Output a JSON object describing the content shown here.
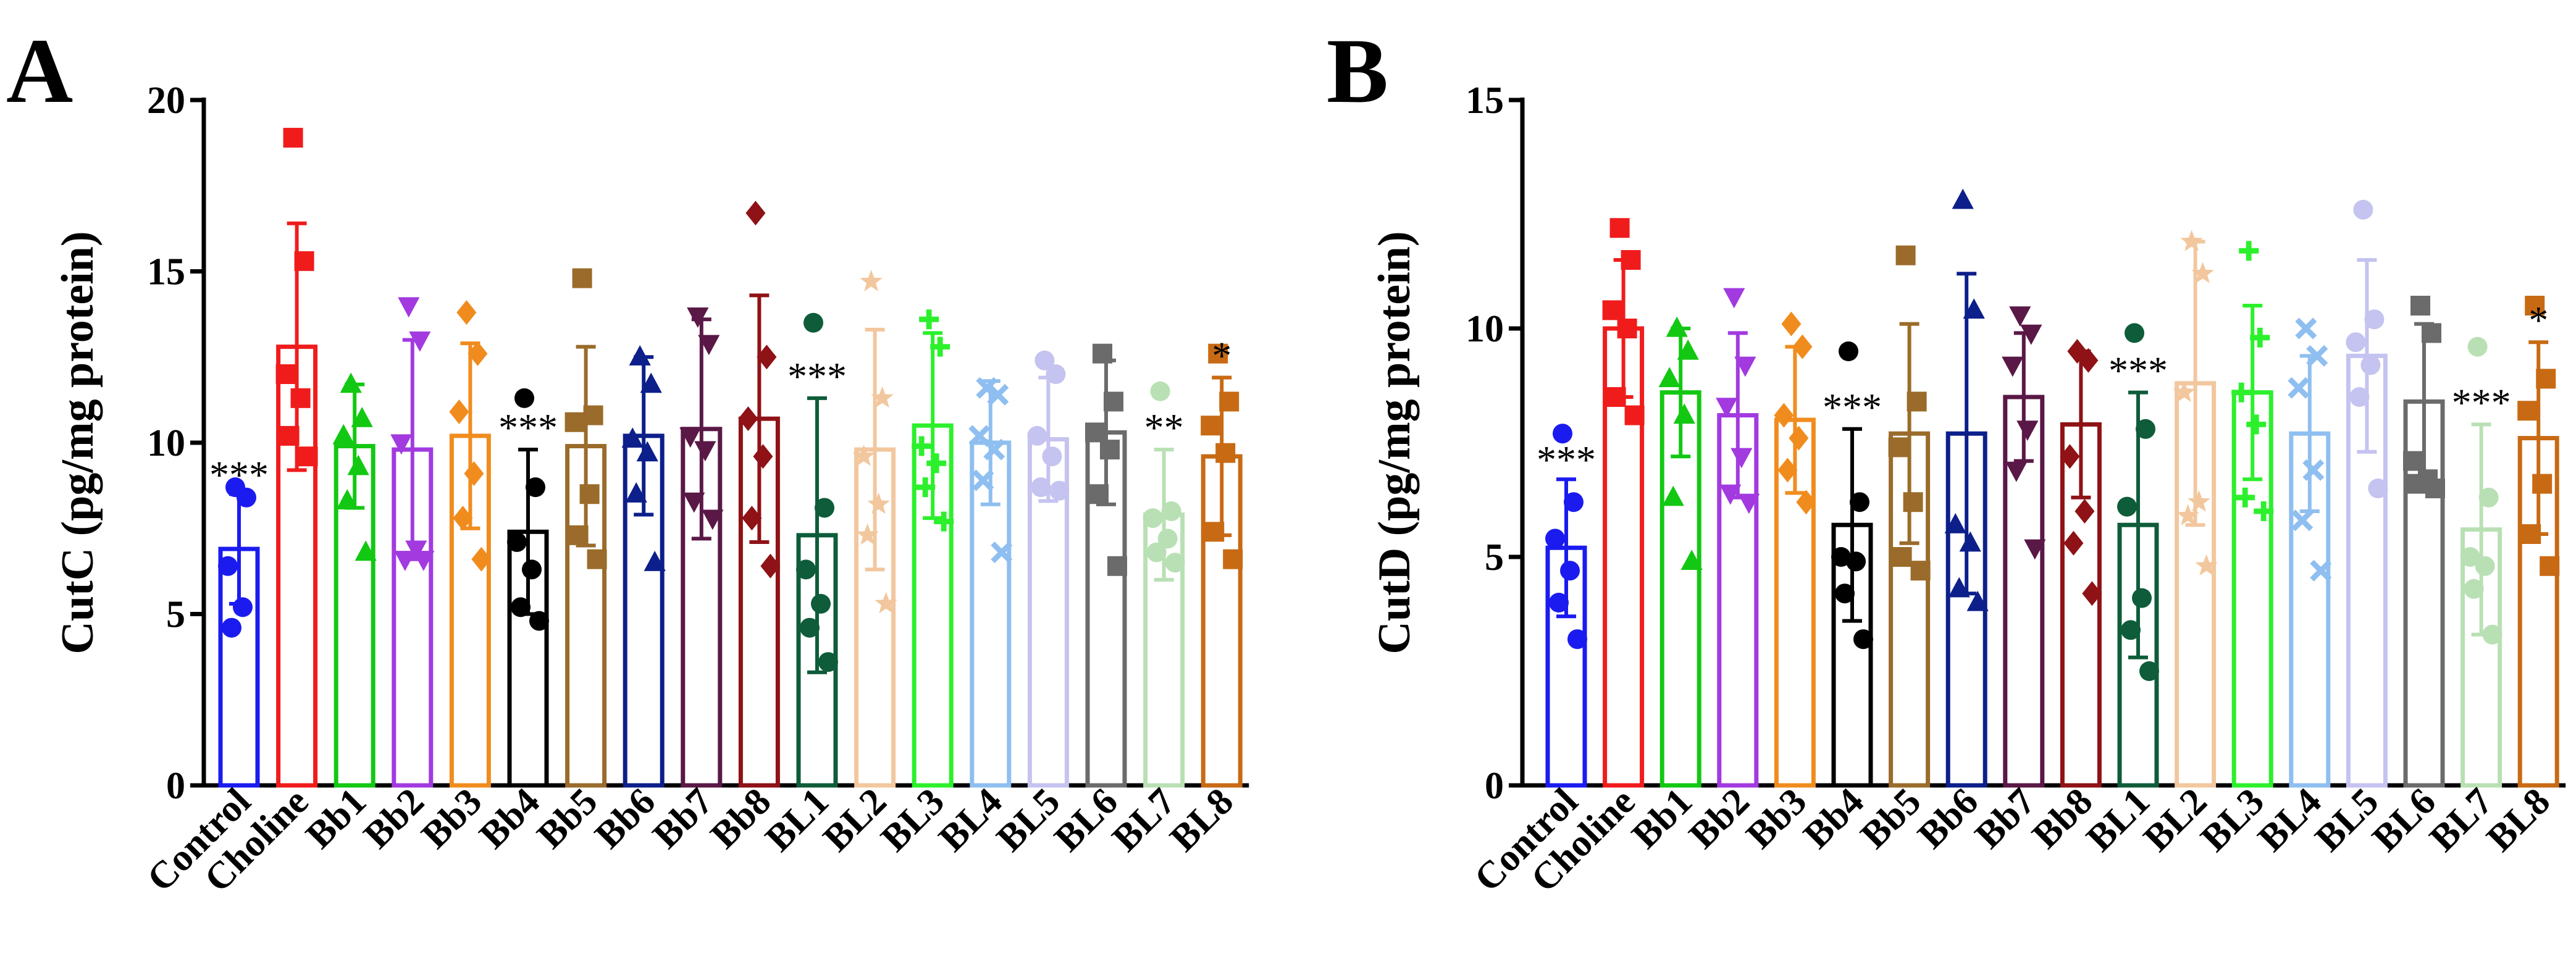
{
  "panels": [
    {
      "letter": "A"
    },
    {
      "letter": "B"
    }
  ],
  "chart_data": [
    {
      "type": "bar",
      "panel": "A",
      "title": "",
      "ylabel": "CutC (pg/mg protein)",
      "xlabel": "",
      "ylim": [
        0,
        20
      ],
      "yticks": [
        "0",
        "5",
        "10",
        "15",
        "20"
      ],
      "categories": [
        "Control",
        "Choline",
        "Bb1",
        "Bb2",
        "Bb3",
        "Bb4",
        "Bb5",
        "Bb6",
        "Bb7",
        "Bb8",
        "BL1",
        "BL2",
        "BL3",
        "BL4",
        "BL5",
        "BL6",
        "BL7",
        "BL8"
      ],
      "markers": [
        "circle",
        "square",
        "triangle",
        "triangle-down",
        "diamond",
        "circle",
        "square",
        "triangle",
        "triangle-down",
        "diamond",
        "circle",
        "star",
        "plus",
        "x",
        "circle",
        "square",
        "circle",
        "square"
      ],
      "colors": [
        "#1b1bf0",
        "#f01c1c",
        "#12c812",
        "#a23ae0",
        "#f08c1e",
        "#000000",
        "#9a6b2a",
        "#0c1f8a",
        "#5a1846",
        "#8e1216",
        "#0e5c3a",
        "#f2c79e",
        "#2cf02c",
        "#8fbff0",
        "#c5c3ef",
        "#6b6b6b",
        "#b9e0b4",
        "#c86a14"
      ],
      "means": [
        6.9,
        12.8,
        9.9,
        9.8,
        10.2,
        7.4,
        9.9,
        10.2,
        10.4,
        10.7,
        7.3,
        9.8,
        10.5,
        10.0,
        10.1,
        10.3,
        7.9,
        9.6
      ],
      "sd": [
        1.6,
        3.6,
        1.8,
        3.2,
        2.7,
        2.4,
        2.9,
        2.3,
        3.2,
        3.6,
        4.0,
        3.5,
        2.7,
        1.8,
        1.8,
        2.1,
        1.9,
        2.3
      ],
      "points": [
        [
          8.7,
          8.4,
          6.4,
          5.2,
          4.6
        ],
        [
          18.9,
          15.3,
          12.0,
          11.3,
          10.2,
          9.6
        ],
        [
          11.7,
          10.7,
          10.2,
          9.3,
          8.3,
          6.8
        ],
        [
          14.0,
          13.0,
          10.0,
          6.9,
          6.6,
          6.6
        ],
        [
          13.8,
          12.6,
          10.9,
          9.1,
          7.8,
          6.6
        ],
        [
          11.3,
          8.7,
          7.1,
          6.3,
          5.2,
          4.8
        ],
        [
          14.8,
          10.8,
          10.6,
          8.5,
          7.3,
          6.6
        ],
        [
          12.5,
          11.7,
          10.1,
          9.7,
          8.5,
          6.5
        ],
        [
          13.7,
          12.9,
          10.2,
          9.8,
          8.3,
          7.8
        ],
        [
          16.7,
          12.5,
          10.7,
          9.6,
          7.8,
          6.4
        ],
        [
          13.5,
          8.1,
          6.3,
          5.3,
          4.6,
          3.6
        ],
        [
          14.7,
          11.3,
          9.6,
          8.2,
          7.3,
          5.3
        ],
        [
          13.6,
          12.8,
          9.9,
          9.4,
          8.7,
          7.7
        ],
        [
          11.6,
          11.4,
          10.2,
          9.8,
          8.9,
          6.8
        ],
        [
          12.4,
          12.0,
          10.2,
          9.6,
          8.7,
          8.6
        ],
        [
          12.6,
          11.2,
          10.3,
          9.8,
          8.5,
          6.4
        ],
        [
          11.5,
          8.0,
          7.8,
          7.2,
          6.8,
          6.5
        ],
        [
          12.6,
          11.2,
          10.5,
          9.7,
          7.4,
          6.6
        ]
      ],
      "significance": [
        "***",
        "",
        "",
        "",
        "",
        "***",
        "",
        "",
        "",
        "",
        "***",
        "",
        "",
        "",
        "",
        "",
        "**",
        "*"
      ]
    },
    {
      "type": "bar",
      "panel": "B",
      "title": "",
      "ylabel": "CutD (pg/mg protein)",
      "xlabel": "",
      "ylim": [
        0,
        15
      ],
      "yticks": [
        "0",
        "5",
        "10",
        "15"
      ],
      "categories": [
        "Control",
        "Choline",
        "Bb1",
        "Bb2",
        "Bb3",
        "Bb4",
        "Bb5",
        "Bb6",
        "Bb7",
        "Bb8",
        "BL1",
        "BL2",
        "BL3",
        "BL4",
        "BL5",
        "BL6",
        "BL7",
        "BL8"
      ],
      "markers": [
        "circle",
        "square",
        "triangle",
        "triangle-down",
        "diamond",
        "circle",
        "square",
        "triangle",
        "triangle-down",
        "diamond",
        "circle",
        "star",
        "plus",
        "x",
        "circle",
        "square",
        "circle",
        "square"
      ],
      "colors": [
        "#1b1bf0",
        "#f01c1c",
        "#12c812",
        "#a23ae0",
        "#f08c1e",
        "#000000",
        "#9a6b2a",
        "#0c1f8a",
        "#5a1846",
        "#8e1216",
        "#0e5c3a",
        "#f2c79e",
        "#2cf02c",
        "#8fbff0",
        "#c5c3ef",
        "#6b6b6b",
        "#b9e0b4",
        "#c86a14"
      ],
      "means": [
        5.2,
        10.0,
        8.6,
        8.1,
        8.0,
        5.7,
        7.7,
        7.7,
        8.5,
        7.9,
        5.7,
        8.8,
        8.6,
        7.7,
        9.4,
        8.4,
        5.6,
        7.6
      ],
      "sd": [
        1.5,
        1.5,
        1.4,
        1.8,
        1.6,
        2.1,
        2.4,
        3.5,
        1.4,
        1.6,
        2.9,
        3.1,
        1.9,
        1.7,
        2.1,
        1.7,
        2.3,
        2.1
      ],
      "points": [
        [
          7.7,
          6.2,
          5.4,
          4.7,
          4.0,
          3.2
        ],
        [
          12.2,
          11.5,
          10.4,
          10.0,
          8.5,
          8.1
        ],
        [
          10.0,
          9.5,
          8.9,
          8.1,
          6.3,
          4.9
        ],
        [
          10.7,
          9.2,
          8.3,
          7.2,
          6.4,
          6.2
        ],
        [
          10.1,
          9.6,
          8.1,
          7.6,
          6.9,
          6.2
        ],
        [
          9.5,
          6.2,
          5.0,
          4.9,
          4.2,
          3.2
        ],
        [
          11.6,
          8.4,
          7.4,
          6.2,
          5.0,
          4.7
        ],
        [
          12.8,
          10.4,
          5.7,
          5.3,
          4.3,
          4.0
        ],
        [
          10.3,
          9.9,
          9.2,
          7.8,
          6.9,
          5.2
        ],
        [
          9.5,
          9.3,
          7.2,
          6.0,
          5.3,
          4.2
        ],
        [
          9.9,
          7.8,
          6.1,
          4.1,
          3.4,
          2.5
        ],
        [
          11.9,
          11.2,
          8.6,
          6.2,
          5.9,
          4.8
        ],
        [
          11.7,
          9.8,
          8.6,
          7.9,
          6.3,
          6.0
        ],
        [
          10.0,
          9.4,
          8.7,
          6.9,
          5.8,
          4.7
        ],
        [
          12.6,
          10.2,
          9.7,
          9.2,
          8.5,
          6.5
        ],
        [
          10.5,
          9.9,
          7.1,
          6.7,
          6.6,
          6.5
        ],
        [
          9.6,
          6.3,
          5.0,
          4.8,
          4.3,
          3.3
        ],
        [
          10.5,
          8.9,
          8.2,
          6.6,
          5.5,
          4.8
        ]
      ],
      "significance": [
        "***",
        "",
        "",
        "",
        "",
        "***",
        "",
        "",
        "",
        "",
        "***",
        "",
        "",
        "",
        "",
        "",
        "***",
        "*"
      ]
    }
  ]
}
